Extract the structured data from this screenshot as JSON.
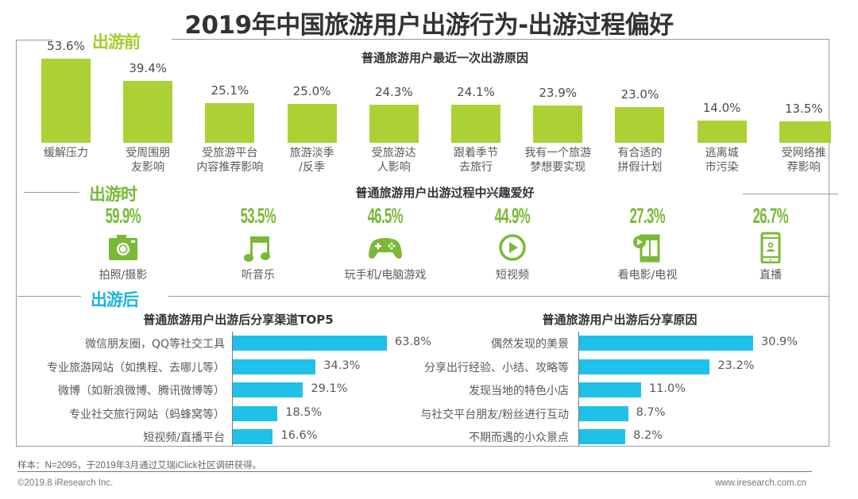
{
  "title": "2019年中国旅游用户出游行为-出游过程偏好",
  "sections": {
    "before": "出游前",
    "during": "出游时",
    "after": "出游后"
  },
  "colors": {
    "before_green": "#acd135",
    "during_green": "#7ab935",
    "after_blue": "#1fc0ea",
    "title_dark": "#333333"
  },
  "chart_data": [
    {
      "type": "bar",
      "title": "普通旅游用户最近一次出游原因",
      "categories": [
        "缓解压力",
        "受周围朋\n友影响",
        "受旅游平台\n内容推荐影响",
        "旅游淡季\n/反季",
        "受旅游达\n人影响",
        "跟着季节\n去旅行",
        "我有一个旅游\n梦想要实现",
        "有合适的\n拼假计划",
        "逃离城\n市污染",
        "受网络推\n荐影响"
      ],
      "values": [
        53.6,
        39.4,
        25.1,
        25.0,
        24.3,
        24.1,
        23.9,
        23.0,
        14.0,
        13.5
      ],
      "value_labels": [
        "53.6%",
        "39.4%",
        "25.1%",
        "25.0%",
        "24.3%",
        "24.1%",
        "23.9%",
        "23.0%",
        "14.0%",
        "13.5%"
      ],
      "xlabel": "",
      "ylabel": "",
      "ylim": [
        0,
        60
      ],
      "grid": false
    },
    {
      "type": "table",
      "title": "普通旅游用户出游过程中兴趣爱好",
      "categories": [
        "拍照/摄影",
        "听音乐",
        "玩手机/电脑游戏",
        "短视频",
        "看电影/电视",
        "直播"
      ],
      "values": [
        59.9,
        53.5,
        46.5,
        44.9,
        27.3,
        26.7
      ],
      "value_labels": [
        "59.9%",
        "53.5%",
        "46.5%",
        "44.9%",
        "27.3%",
        "26.7%"
      ],
      "icons": [
        "camera-icon",
        "music-note-icon",
        "gamepad-icon",
        "play-circle-icon",
        "film-icon",
        "mobile-live-icon"
      ]
    },
    {
      "type": "bar",
      "orientation": "horizontal",
      "title": "普通旅游用户出游后分享渠道TOP5",
      "categories": [
        "微信朋友圈，QQ等社交工具",
        "专业旅游网站（如携程、去哪儿等）",
        "微博（如新浪微博、腾讯微博等）",
        "专业社交旅行网站（蚂蜂窝等）",
        "短视频/直播平台"
      ],
      "values": [
        63.8,
        34.3,
        29.1,
        18.5,
        16.6
      ],
      "value_labels": [
        "63.8%",
        "34.3%",
        "29.1%",
        "18.5%",
        "16.6%"
      ],
      "xlim": [
        0,
        70
      ],
      "grid": false
    },
    {
      "type": "bar",
      "orientation": "horizontal",
      "title": "普通旅游用户出游后分享原因",
      "categories": [
        "偶然发现的美景",
        "分享出行经验、小结、攻略等",
        "发现当地的特色小店",
        "与社交平台朋友/粉丝进行互动",
        "不期而遇的小众景点"
      ],
      "values": [
        30.9,
        23.2,
        11.0,
        8.7,
        8.2
      ],
      "value_labels": [
        "30.9%",
        "23.2%",
        "11.0%",
        "8.7%",
        "8.2%"
      ],
      "xlim": [
        0,
        33
      ],
      "grid": false
    }
  ],
  "footer": {
    "note": "样本：N=2095，于2019年3月通过艾瑞iClick社区调研获得。",
    "copyright": "©2019.8 iResearch Inc.",
    "website": "www.iresearch.com.cn"
  }
}
